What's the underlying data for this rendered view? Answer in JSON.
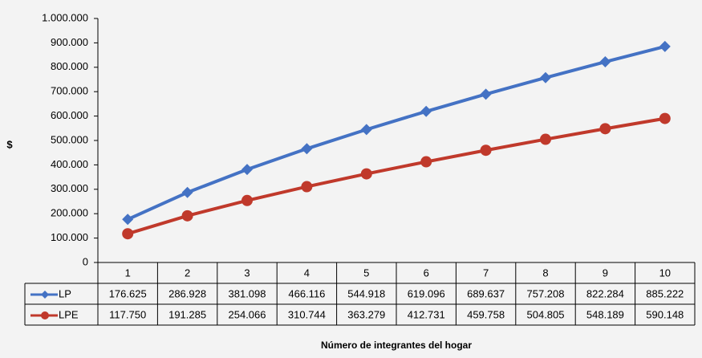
{
  "chart_data": {
    "type": "line",
    "ylabel": "$",
    "xlabel": "Número de integrantes del hogar",
    "categories": [
      "1",
      "2",
      "3",
      "4",
      "5",
      "6",
      "7",
      "8",
      "9",
      "10"
    ],
    "ylim": [
      0,
      1000000
    ],
    "yticks": [
      0,
      100000,
      200000,
      300000,
      400000,
      500000,
      600000,
      700000,
      800000,
      900000,
      1000000
    ],
    "ytick_labels": [
      "0",
      "100.000",
      "200.000",
      "300.000",
      "400.000",
      "500.000",
      "600.000",
      "700.000",
      "800.000",
      "900.000",
      "1.000.000"
    ],
    "grid": false,
    "legend": "data-table",
    "series": [
      {
        "name": "LP",
        "color": "#4472c4",
        "marker": "diamond",
        "values": [
          176625,
          286928,
          381098,
          466116,
          544918,
          619096,
          689637,
          757208,
          822284,
          885222
        ],
        "labels": [
          "176.625",
          "286.928",
          "381.098",
          "466.116",
          "544.918",
          "619.096",
          "689.637",
          "757.208",
          "822.284",
          "885.222"
        ]
      },
      {
        "name": "LPE",
        "color": "#c0392b",
        "marker": "circle",
        "values": [
          117750,
          191285,
          254066,
          310744,
          363279,
          412731,
          459758,
          504805,
          548189,
          590148
        ],
        "labels": [
          "117.750",
          "191.285",
          "254.066",
          "310.744",
          "363.279",
          "412.731",
          "459.758",
          "504.805",
          "548.189",
          "590.148"
        ]
      }
    ]
  }
}
